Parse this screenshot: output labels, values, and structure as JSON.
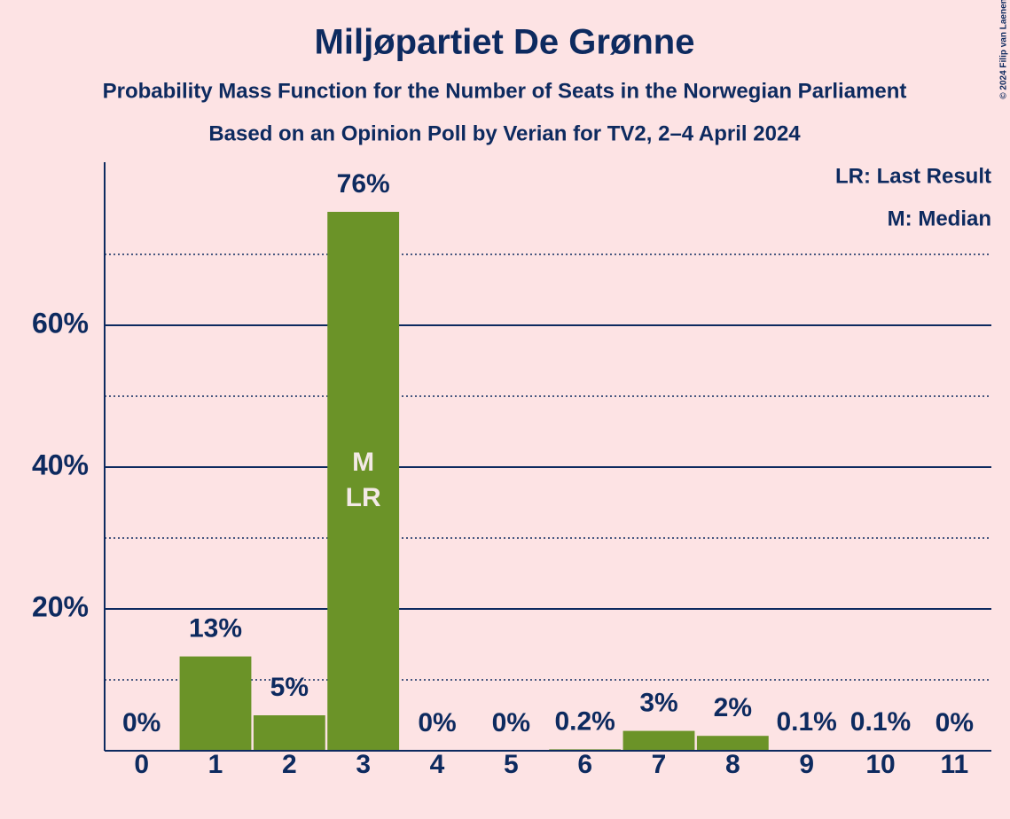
{
  "chart_data": {
    "type": "bar",
    "title": "Miljøpartiet De Grønne",
    "subtitle": "Probability Mass Function for the Number of Seats in the Norwegian Parliament",
    "subtitle2": "Based on an Opinion Poll by Verian for TV2, 2–4 April 2024",
    "copyright": "© 2024 Filip van Laenen",
    "x": [
      0,
      1,
      2,
      3,
      4,
      5,
      6,
      7,
      8,
      9,
      10,
      11
    ],
    "values": [
      0,
      13.3,
      5,
      76,
      0,
      0,
      0.2,
      2.8,
      2.1,
      0.1,
      0.1,
      0
    ],
    "value_labels": [
      "0%",
      "13%",
      "5%",
      "76%",
      "0%",
      "0%",
      "0.2%",
      "3%",
      "2%",
      "0.1%",
      "0.1%",
      "0%"
    ],
    "color": "#6b9328",
    "ylim": [
      0,
      83
    ],
    "yticks": [
      {
        "value": 20,
        "label": "20%"
      },
      {
        "value": 40,
        "label": "40%"
      },
      {
        "value": 60,
        "label": "60%"
      }
    ],
    "minor_yticks": [
      10,
      30,
      50,
      70
    ],
    "grid": true,
    "median": 3,
    "median_label": "M",
    "last_result": 3,
    "last_result_label": "LR",
    "legend": [
      "LR: Last Result",
      "M: Median"
    ]
  }
}
